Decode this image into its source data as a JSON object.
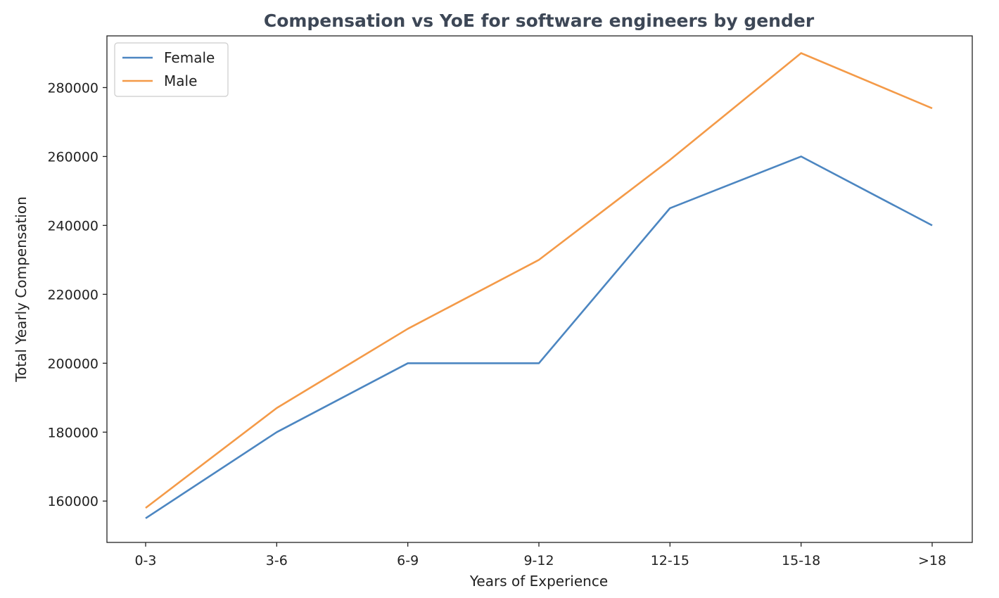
{
  "chart_data": {
    "type": "line",
    "title": "Compensation vs YoE for software engineers by gender",
    "xlabel": "Years of Experience",
    "ylabel": "Total Yearly Compensation",
    "categories": [
      "0-3",
      "3-6",
      "6-9",
      "9-12",
      "12-15",
      "15-18",
      ">18"
    ],
    "ylim": [
      148000,
      295000
    ],
    "yticks": [
      160000,
      180000,
      200000,
      220000,
      240000,
      260000,
      280000
    ],
    "ytick_labels": [
      "160000",
      "180000",
      "200000",
      "220000",
      "240000",
      "260000",
      "280000"
    ],
    "grid": false,
    "legend_position": "top-left",
    "series": [
      {
        "name": "Female",
        "color": "#4c86c1",
        "values": [
          155000,
          180000,
          200000,
          200000,
          245000,
          260000,
          240000
        ]
      },
      {
        "name": "Male",
        "color": "#f49a48",
        "values": [
          158000,
          187000,
          210000,
          230000,
          259000,
          290000,
          274000
        ]
      }
    ]
  }
}
